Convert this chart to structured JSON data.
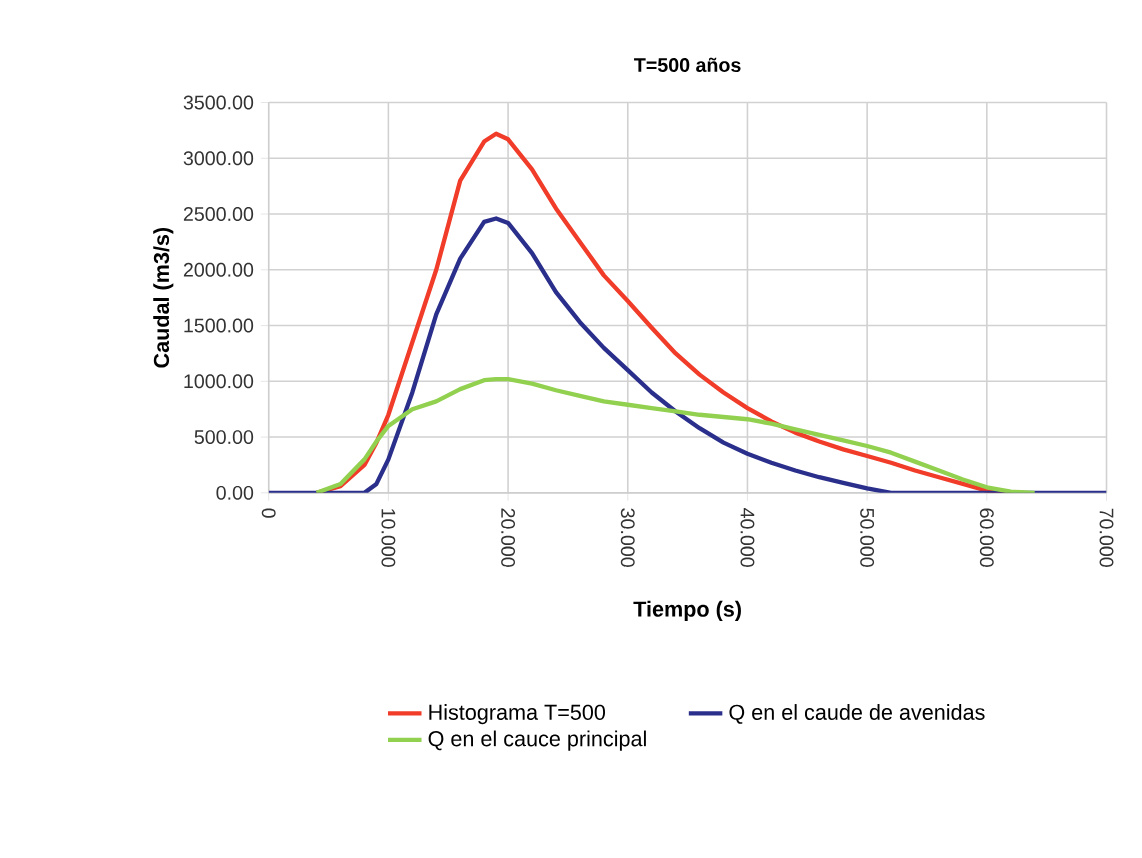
{
  "chart_data": {
    "type": "line",
    "title": "T=500 años",
    "xlabel": "Tiempo (s)",
    "ylabel": "Caudal (m3/s)",
    "xlim": [
      0,
      70
    ],
    "ylim": [
      0,
      3500
    ],
    "xticks": [
      {
        "value": 0,
        "label": "0"
      },
      {
        "value": 10,
        "label": "10.000"
      },
      {
        "value": 20,
        "label": "20.000"
      },
      {
        "value": 30,
        "label": "30.000"
      },
      {
        "value": 40,
        "label": "40.000"
      },
      {
        "value": 50,
        "label": "50.000"
      },
      {
        "value": 60,
        "label": "60.000"
      },
      {
        "value": 70,
        "label": "70.000"
      }
    ],
    "yticks": [
      {
        "value": 0,
        "label": "0.00"
      },
      {
        "value": 500,
        "label": "500.00"
      },
      {
        "value": 1000,
        "label": "1000.00"
      },
      {
        "value": 1500,
        "label": "1500.00"
      },
      {
        "value": 2000,
        "label": "2000.00"
      },
      {
        "value": 2500,
        "label": "2500.00"
      },
      {
        "value": 3000,
        "label": "3000.00"
      },
      {
        "value": 3500,
        "label": "3500.00"
      }
    ],
    "grid": true,
    "legend": "bottom",
    "marker": "none",
    "line_style": "solid",
    "x": [
      0,
      2,
      4,
      6,
      8,
      9,
      10,
      12,
      14,
      16,
      18,
      19,
      20,
      22,
      24,
      26,
      28,
      30,
      32,
      34,
      36,
      38,
      40,
      42,
      44,
      46,
      48,
      50,
      52,
      54,
      56,
      58,
      60,
      62,
      64,
      66,
      68,
      70
    ],
    "series": [
      {
        "name": "Histograma T=500",
        "color": "#f03c28",
        "values": [
          null,
          null,
          0,
          60,
          250,
          450,
          700,
          1350,
          2000,
          2800,
          3150,
          3220,
          3170,
          2900,
          2550,
          2250,
          1950,
          1720,
          1480,
          1250,
          1060,
          900,
          760,
          640,
          540,
          460,
          390,
          330,
          270,
          200,
          140,
          80,
          20,
          0,
          null,
          null,
          null,
          null
        ]
      },
      {
        "name": "Q en el caude de avenidas",
        "color": "#2b2f8c",
        "values": [
          0,
          0,
          0,
          0,
          0,
          80,
          300,
          900,
          1600,
          2100,
          2430,
          2460,
          2420,
          2150,
          1800,
          1530,
          1300,
          1100,
          900,
          730,
          580,
          450,
          350,
          270,
          200,
          140,
          90,
          40,
          0,
          0,
          0,
          0,
          0,
          0,
          0,
          0,
          0,
          0
        ]
      },
      {
        "name": "Q en el cauce principal",
        "color": "#92d050",
        "values": [
          null,
          null,
          0,
          80,
          300,
          460,
          600,
          750,
          820,
          930,
          1010,
          1020,
          1020,
          980,
          920,
          870,
          820,
          790,
          760,
          730,
          700,
          680,
          660,
          620,
          570,
          520,
          470,
          420,
          360,
          280,
          200,
          120,
          50,
          10,
          0,
          null,
          null,
          null
        ]
      }
    ]
  }
}
